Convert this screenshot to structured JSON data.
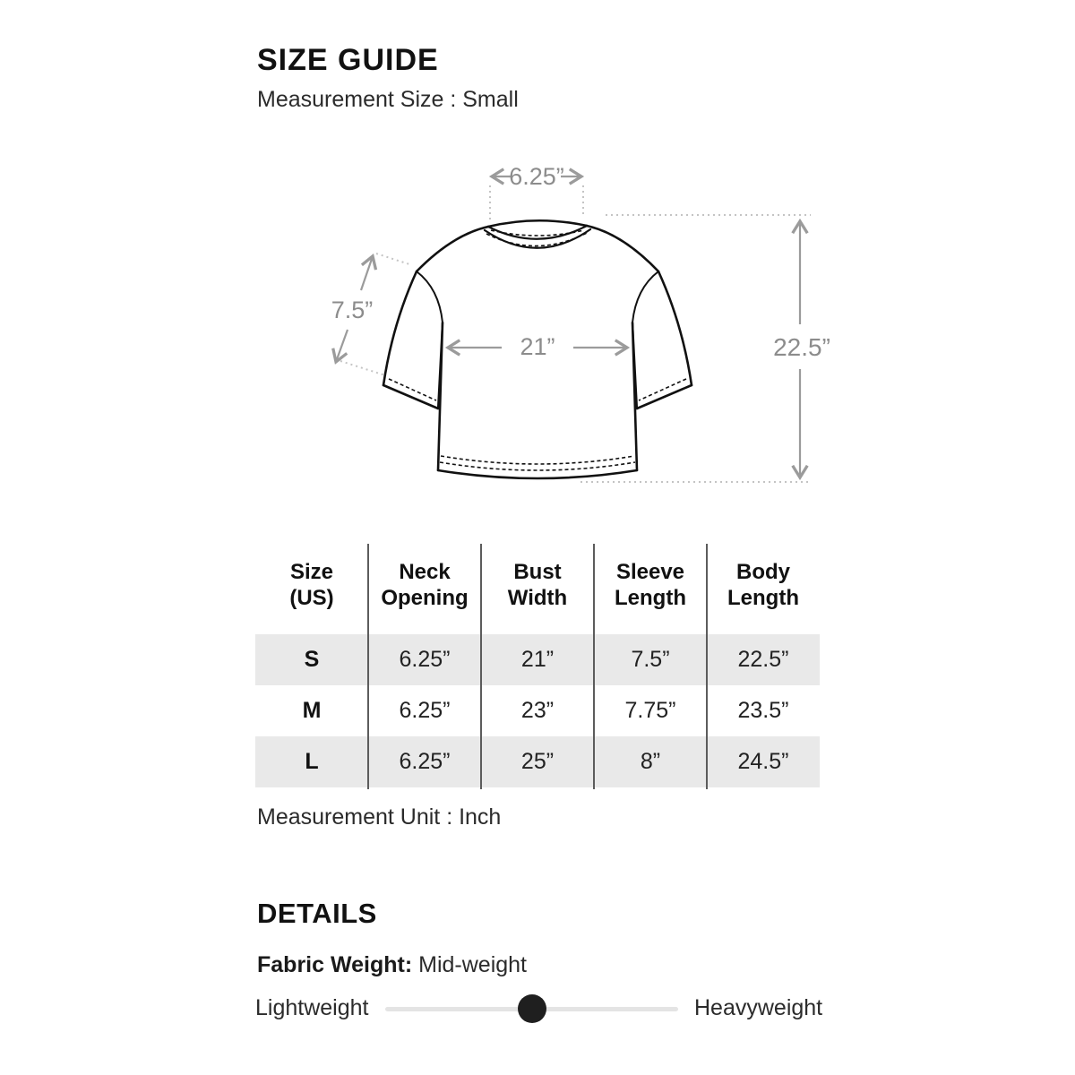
{
  "header": {
    "title": "SIZE GUIDE",
    "subtitle": "Measurement Size : Small"
  },
  "diagram": {
    "neck_opening": "6.25”",
    "sleeve_length": "7.5”",
    "bust_width": "21”",
    "body_length": "22.5”"
  },
  "size_table": {
    "headers": [
      "Size (US)",
      "Neck Opening",
      "Bust Width",
      "Sleeve Length",
      "Body Length"
    ],
    "rows": [
      [
        "S",
        "6.25”",
        "21”",
        "7.5”",
        "22.5”"
      ],
      [
        "M",
        "6.25”",
        "23”",
        "7.75”",
        "23.5”"
      ],
      [
        "L",
        "6.25”",
        "25”",
        "8”",
        "24.5”"
      ]
    ],
    "unit_note": "Measurement Unit : Inch"
  },
  "details": {
    "heading": "DETAILS",
    "fabric_weight_label": "Fabric Weight:",
    "fabric_weight_value": "Mid-weight",
    "slider": {
      "left_label": "Lightweight",
      "right_label": "Heavyweight",
      "position_percent": 50
    }
  },
  "colors": {
    "text_primary": "#111111",
    "text_secondary": "#2b2b2b",
    "measurement_gray": "#8c8c8c",
    "row_highlight": "#e9e9e9",
    "slider_track": "#e4e4e4",
    "slider_dot": "#1f1f1f"
  }
}
